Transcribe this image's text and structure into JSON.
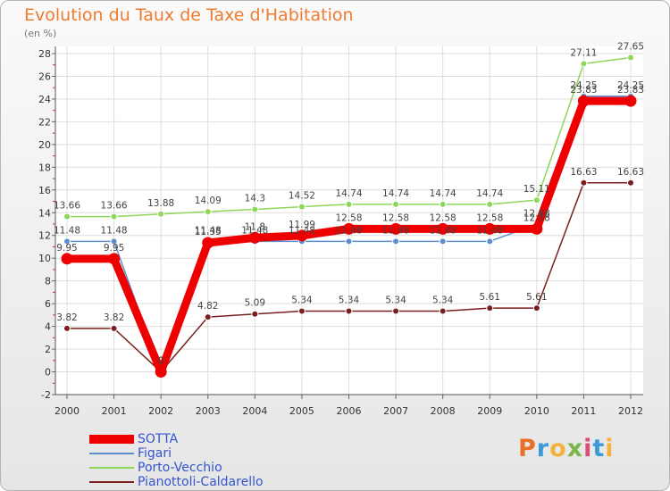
{
  "header": {
    "title": "Evolution du Taux de Taxe d'Habitation",
    "subtitle": "(en %)"
  },
  "logo": {
    "text": "Proxiti",
    "colors": [
      "#e8702a",
      "#3a9ad9",
      "#f2b33d",
      "#7ab648",
      "#d94f7a",
      "#3a9ad9",
      "#f2b33d"
    ]
  },
  "chart_data": {
    "type": "line",
    "title": "Evolution du Taux de Taxe d'Habitation",
    "ylabel": "(en %)",
    "xlabel": "",
    "categories": [
      "2000",
      "2001",
      "2002",
      "2003",
      "2004",
      "2005",
      "2006",
      "2007",
      "2008",
      "2009",
      "2010",
      "2011",
      "2012"
    ],
    "ylim": [
      -2,
      28
    ],
    "yticks": [
      -2,
      0,
      2,
      4,
      6,
      8,
      10,
      12,
      14,
      16,
      18,
      20,
      22,
      24,
      26,
      28
    ],
    "grid": true,
    "legend_position": "bottom-left",
    "series": [
      {
        "name": "SOTTA",
        "color": "#ee0000",
        "values": [
          9.95,
          9.95,
          0,
          11.35,
          11.8,
          11.99,
          12.58,
          12.58,
          12.58,
          12.58,
          12.58,
          23.83,
          23.83
        ],
        "labels": [
          "9.95",
          "9.95",
          "0",
          "11.35",
          "11.8",
          "11.99",
          "12.58",
          "12.58",
          "12.58",
          "12.58",
          "12.58",
          "23.83",
          "23.83"
        ]
      },
      {
        "name": "Figari",
        "color": "#5b8fd0",
        "values": [
          11.48,
          11.48,
          0,
          11.48,
          11.48,
          11.48,
          11.48,
          11.48,
          11.48,
          11.48,
          12.98,
          24.25,
          24.25
        ],
        "labels": [
          "11.48",
          "11.48",
          "0",
          "11.48",
          "11.48",
          "11.48",
          "11.48",
          "11.48",
          "11.48",
          "11.48",
          "12.98",
          "24.25",
          "24.25"
        ]
      },
      {
        "name": "Porto-Vecchio",
        "color": "#8fd65a",
        "values": [
          13.66,
          13.66,
          13.88,
          14.09,
          14.3,
          14.52,
          14.74,
          14.74,
          14.74,
          14.74,
          15.11,
          27.11,
          27.65
        ],
        "labels": [
          "13.66",
          "13.66",
          "13.88",
          "14.09",
          "14.3",
          "14.52",
          "14.74",
          "14.74",
          "14.74",
          "14.74",
          "15.11",
          "27.11",
          "27.65"
        ]
      },
      {
        "name": "Pianottoli-Caldarello",
        "color": "#7a1f1f",
        "values": [
          3.82,
          3.82,
          0,
          4.82,
          5.09,
          5.34,
          5.34,
          5.34,
          5.34,
          5.61,
          5.61,
          16.63,
          16.63
        ],
        "labels": [
          "3.82",
          "3.82",
          "0",
          "4.82",
          "5.09",
          "5.34",
          "5.34",
          "5.34",
          "5.34",
          "5.61",
          "5.61",
          "16.63",
          "16.63"
        ]
      }
    ]
  }
}
